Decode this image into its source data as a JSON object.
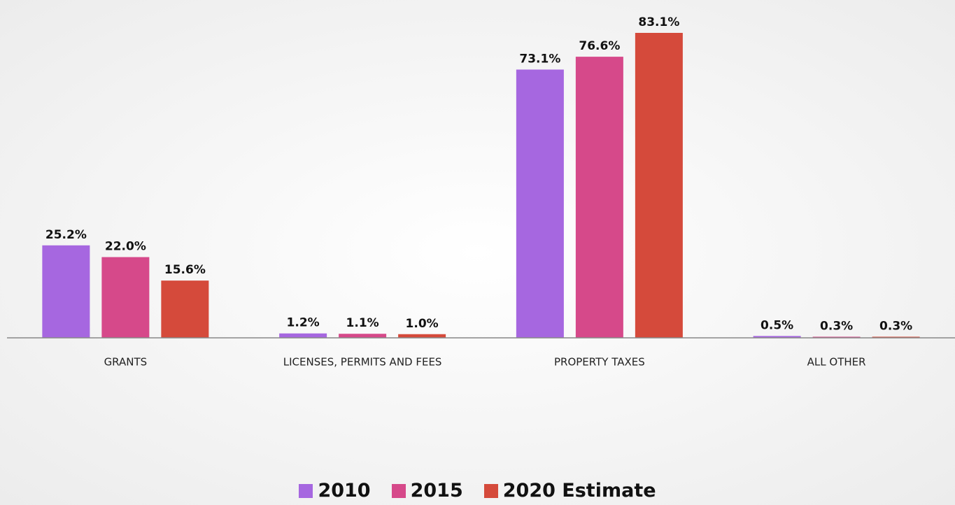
{
  "chart_data": {
    "type": "bar",
    "categories": [
      "GRANTS",
      "LICENSES, PERMITS AND FEES",
      "PROPERTY TAXES",
      "ALL OTHER"
    ],
    "series": [
      {
        "name": "2010",
        "color": "#a667e0",
        "values": [
          25.2,
          1.2,
          73.1,
          0.5
        ],
        "value_labels": [
          "25.2%",
          "1.2%",
          "73.1%",
          "0.5%"
        ]
      },
      {
        "name": "2015",
        "color": "#d6498a",
        "values": [
          22.0,
          1.1,
          76.6,
          0.3
        ],
        "value_labels": [
          "22.0%",
          "1.1%",
          "76.6%",
          "0.3%"
        ]
      },
      {
        "name": "2020 Estimate",
        "color": "#d54a3b",
        "values": [
          15.6,
          1.0,
          83.1,
          0.3
        ],
        "value_labels": [
          "15.6%",
          "1.0%",
          "83.1%",
          "0.3%"
        ]
      }
    ],
    "legend": "bottom"
  }
}
